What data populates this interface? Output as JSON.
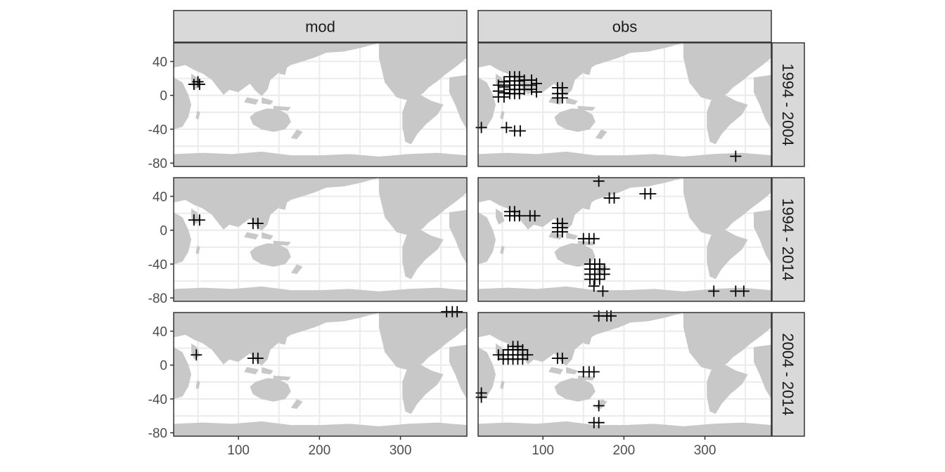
{
  "chart_data": {
    "type": "scatter",
    "columns": [
      "mod",
      "obs"
    ],
    "rows": [
      "1994 - 2004",
      "1994 - 2014",
      "2004 - 2014"
    ],
    "xlim": [
      20,
      382
    ],
    "ylim": [
      -84,
      62
    ],
    "x_ticks": [
      100,
      200,
      300
    ],
    "y_ticks": [
      40,
      0,
      -40,
      -80
    ],
    "marker": "+",
    "grid": true,
    "colors": {
      "background": "#ffffff",
      "land": "#c8c8c8",
      "grid": "#ebebeb",
      "strip": "#d9d9d9",
      "marker": "#000000",
      "border": "#333333"
    },
    "panels": [
      {
        "col": "mod",
        "row": "1994 - 2004",
        "points": [
          [
            45,
            13
          ],
          [
            50,
            16
          ],
          [
            52,
            13
          ]
        ]
      },
      {
        "col": "obs",
        "row": "1994 - 2004",
        "points": [
          [
            24,
            -38
          ],
          [
            45,
            12
          ],
          [
            45,
            5
          ],
          [
            45,
            -2
          ],
          [
            52,
            16
          ],
          [
            52,
            10
          ],
          [
            52,
            3
          ],
          [
            52,
            -2
          ],
          [
            59,
            22
          ],
          [
            59,
            17
          ],
          [
            59,
            12
          ],
          [
            59,
            7
          ],
          [
            59,
            2
          ],
          [
            65,
            22
          ],
          [
            65,
            17
          ],
          [
            65,
            12
          ],
          [
            65,
            7
          ],
          [
            65,
            2
          ],
          [
            71,
            22
          ],
          [
            71,
            17
          ],
          [
            71,
            12
          ],
          [
            71,
            7
          ],
          [
            71,
            2
          ],
          [
            77,
            18
          ],
          [
            77,
            12
          ],
          [
            77,
            7
          ],
          [
            86,
            18
          ],
          [
            86,
            12
          ],
          [
            86,
            7
          ],
          [
            92,
            14
          ],
          [
            92,
            4
          ],
          [
            118,
            9
          ],
          [
            118,
            2
          ],
          [
            118,
            -3
          ],
          [
            124,
            9
          ],
          [
            124,
            2
          ],
          [
            124,
            -3
          ],
          [
            55,
            -38
          ],
          [
            65,
            -42
          ],
          [
            72,
            -42
          ],
          [
            338,
            -72
          ]
        ]
      },
      {
        "col": "mod",
        "row": "1994 - 2014",
        "points": [
          [
            45,
            12
          ],
          [
            52,
            12
          ],
          [
            118,
            8
          ],
          [
            124,
            8
          ]
        ]
      },
      {
        "col": "obs",
        "row": "1994 - 2014",
        "points": [
          [
            59,
            22
          ],
          [
            59,
            17
          ],
          [
            65,
            22
          ],
          [
            65,
            17
          ],
          [
            71,
            17
          ],
          [
            84,
            17
          ],
          [
            90,
            17
          ],
          [
            118,
            8
          ],
          [
            118,
            3
          ],
          [
            118,
            -2
          ],
          [
            124,
            8
          ],
          [
            124,
            3
          ],
          [
            124,
            -2
          ],
          [
            150,
            -10
          ],
          [
            157,
            -10
          ],
          [
            163,
            -10
          ],
          [
            158,
            -40
          ],
          [
            158,
            -46
          ],
          [
            158,
            -52
          ],
          [
            158,
            -58
          ],
          [
            164,
            -40
          ],
          [
            164,
            -46
          ],
          [
            164,
            -52
          ],
          [
            164,
            -58
          ],
          [
            170,
            -40
          ],
          [
            170,
            -46
          ],
          [
            170,
            -52
          ],
          [
            170,
            -58
          ],
          [
            176,
            -46
          ],
          [
            176,
            -52
          ],
          [
            163,
            -66
          ],
          [
            174,
            -72
          ],
          [
            169,
            58
          ],
          [
            182,
            38
          ],
          [
            188,
            38
          ],
          [
            226,
            43
          ],
          [
            233,
            43
          ],
          [
            311,
            -72
          ],
          [
            338,
            -72
          ],
          [
            348,
            -72
          ]
        ]
      },
      {
        "col": "mod",
        "row": "2004 - 2014",
        "points": [
          [
            48,
            12
          ],
          [
            118,
            8
          ],
          [
            124,
            8
          ],
          [
            357,
            63
          ],
          [
            364,
            63
          ],
          [
            370,
            63
          ]
        ]
      },
      {
        "col": "obs",
        "row": "2004 - 2014",
        "points": [
          [
            24,
            -33
          ],
          [
            24,
            -38
          ],
          [
            45,
            12
          ],
          [
            51,
            12
          ],
          [
            51,
            7
          ],
          [
            57,
            18
          ],
          [
            57,
            12
          ],
          [
            57,
            7
          ],
          [
            63,
            22
          ],
          [
            63,
            18
          ],
          [
            63,
            12
          ],
          [
            63,
            7
          ],
          [
            69,
            22
          ],
          [
            69,
            18
          ],
          [
            69,
            12
          ],
          [
            69,
            7
          ],
          [
            75,
            18
          ],
          [
            75,
            12
          ],
          [
            75,
            7
          ],
          [
            81,
            12
          ],
          [
            118,
            8
          ],
          [
            124,
            8
          ],
          [
            150,
            -8
          ],
          [
            157,
            -8
          ],
          [
            163,
            -8
          ],
          [
            169,
            -48
          ],
          [
            163,
            -68
          ],
          [
            169,
            -68
          ],
          [
            169,
            58
          ],
          [
            179,
            58
          ],
          [
            184,
            58
          ]
        ]
      }
    ]
  }
}
